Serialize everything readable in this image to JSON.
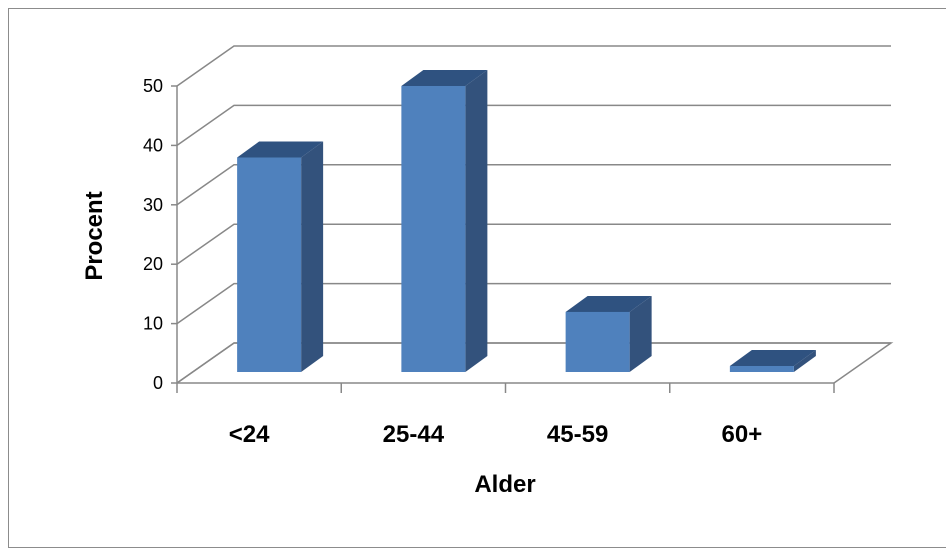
{
  "chart_data": {
    "type": "bar",
    "style": "3d-column",
    "categories": [
      "<24",
      "25-44",
      "45-59",
      "60+"
    ],
    "values": [
      37.5,
      50,
      10.5,
      1
    ],
    "xlabel": "Alder",
    "ylabel": "Procent",
    "ylim": [
      0,
      50
    ],
    "yticks": [
      0,
      10,
      20,
      30,
      40,
      50
    ],
    "grid": true,
    "legend": "none",
    "colors": {
      "front": "#4f81bd",
      "side": "#33527c",
      "top": "#2f5280"
    }
  }
}
